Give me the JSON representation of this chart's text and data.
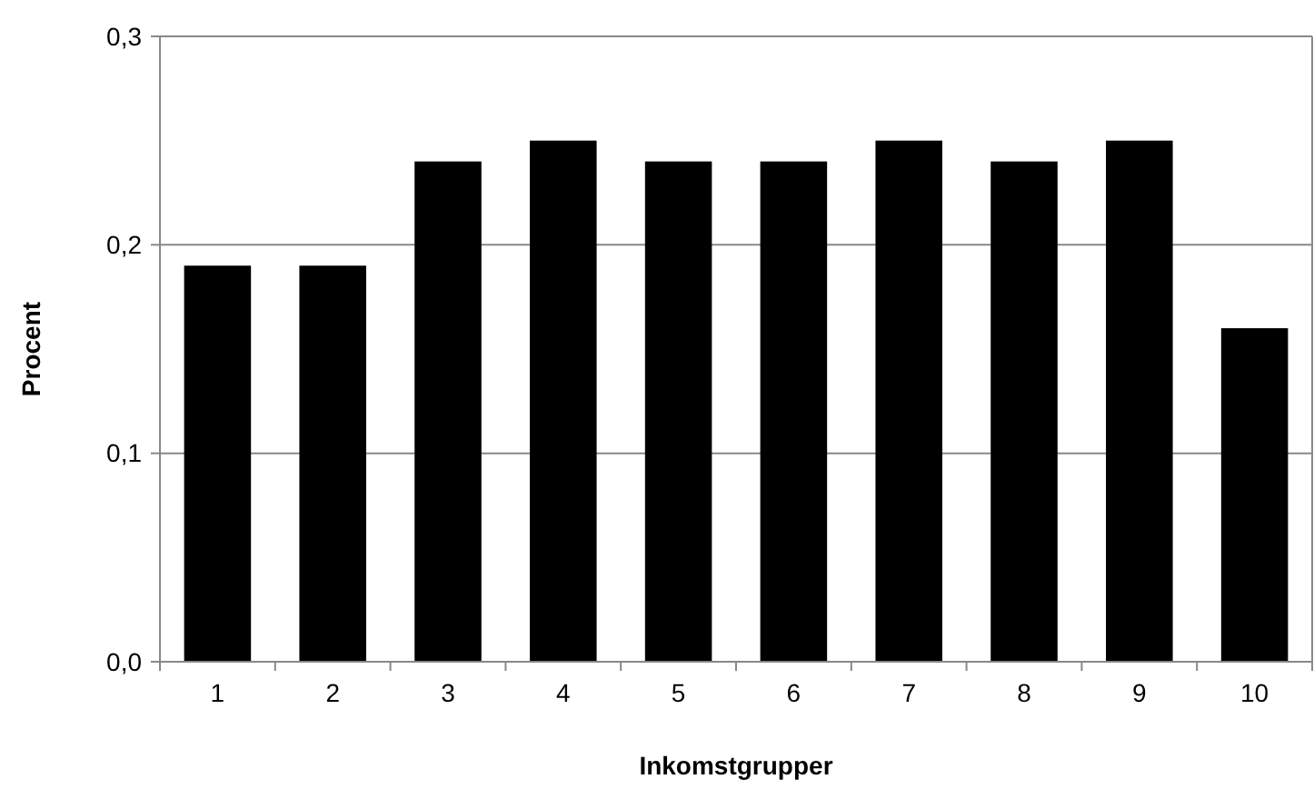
{
  "chart_data": {
    "type": "bar",
    "xlabel": "Inkomstgrupper",
    "ylabel": "Procent",
    "categories": [
      "1",
      "2",
      "3",
      "4",
      "5",
      "6",
      "7",
      "8",
      "9",
      "10"
    ],
    "values": [
      0.19,
      0.19,
      0.24,
      0.25,
      0.24,
      0.24,
      0.25,
      0.24,
      0.25,
      0.16
    ],
    "color": "#000000",
    "ylim": [
      0,
      0.3
    ],
    "yticks": [
      {
        "value": 0,
        "label": "0,0"
      },
      {
        "value": 0.1,
        "label": "0,1"
      },
      {
        "value": 0.2,
        "label": "0,2"
      },
      {
        "value": 0.3,
        "label": "0,3"
      }
    ],
    "grid": "y"
  }
}
